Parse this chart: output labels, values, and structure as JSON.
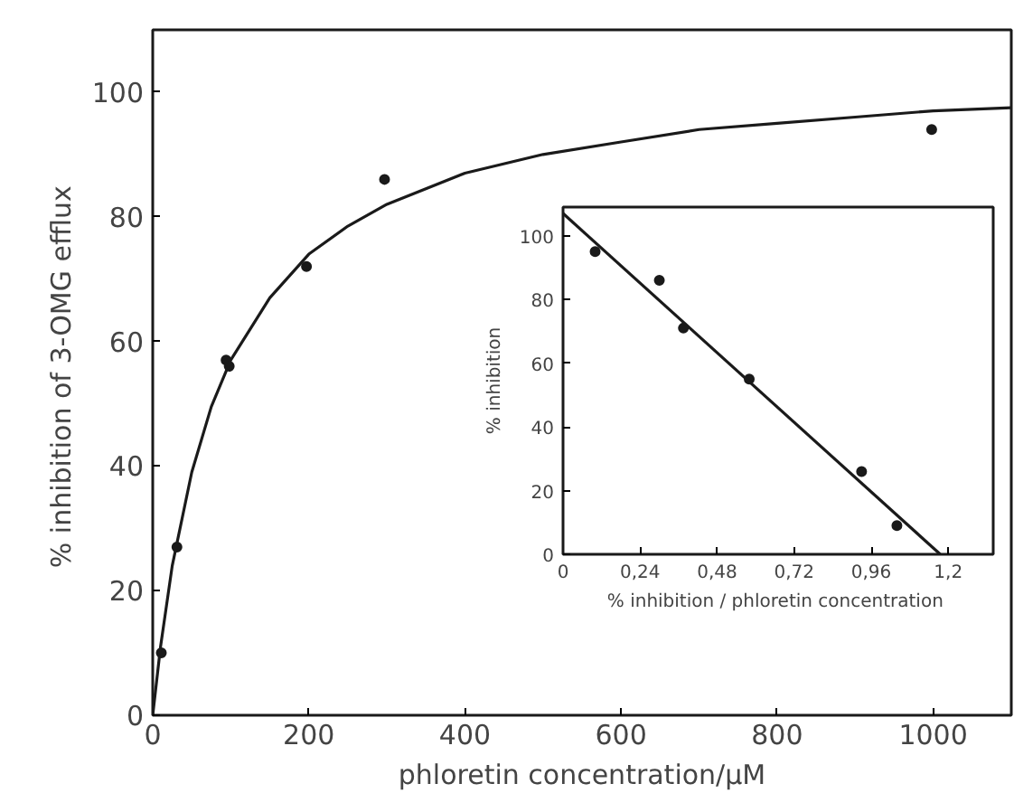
{
  "chart_data": [
    {
      "type": "scatter",
      "xlabel": "phloretin concentration/µM",
      "ylabel": "% inhibition of  3-OMG efflux",
      "xlim": [
        0,
        1100
      ],
      "ylim": [
        0,
        110
      ],
      "xticks": [
        0,
        200,
        400,
        600,
        800,
        1000
      ],
      "yticks": [
        0,
        20,
        40,
        60,
        80,
        100
      ],
      "series": [
        {
          "color": "#1a1a1a",
          "marker": "circle",
          "x": [
            11,
            31,
            94,
            98,
            197,
            297,
            998
          ],
          "values": [
            10,
            27,
            57,
            56,
            72,
            86,
            94
          ]
        },
        {
          "type": "line",
          "color": "#1a1a1a",
          "marker": "none",
          "line_style": "solid",
          "x": [
            0,
            10,
            25,
            50,
            75,
            100,
            150,
            200,
            250,
            300,
            400,
            500,
            600,
            700,
            800,
            900,
            1000,
            1100
          ],
          "values": [
            0,
            11,
            24,
            39,
            49.5,
            57,
            67,
            74,
            78.5,
            82,
            87,
            90,
            92,
            94,
            95,
            96,
            97,
            97.5
          ]
        }
      ]
    },
    {
      "type": "scatter",
      "xlabel": "%  inhibition / phloretin concentration",
      "ylabel": "% inhibition",
      "xlim": [
        0,
        1.34
      ],
      "ylim": [
        0,
        109
      ],
      "xticks": [
        0,
        {
          "value": 0.24,
          "label": "0,24"
        },
        {
          "value": 0.48,
          "label": "0,48"
        },
        {
          "value": 0.72,
          "label": "0,72"
        },
        {
          "value": 0.96,
          "label": "0,96"
        },
        {
          "value": 1.2,
          "label": "1,2"
        }
      ],
      "yticks": [
        0,
        20,
        40,
        60,
        80,
        100
      ],
      "series": [
        {
          "color": "#1a1a1a",
          "marker": "circle",
          "x": [
            0.1,
            0.3,
            0.375,
            0.58,
            0.93,
            1.04
          ],
          "values": [
            95,
            86,
            71,
            55,
            26,
            9
          ]
        },
        {
          "type": "line",
          "color": "#1a1a1a",
          "marker": "none",
          "line_style": "solid",
          "x": [
            0,
            1.175
          ],
          "values": [
            107,
            0
          ]
        }
      ]
    }
  ]
}
